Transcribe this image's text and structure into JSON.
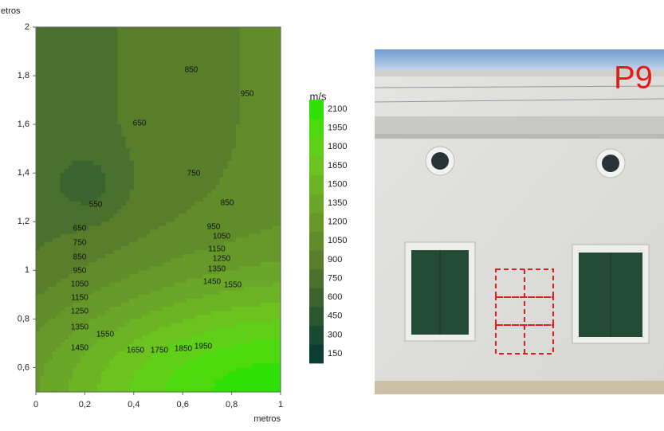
{
  "chart_data": {
    "type": "contour",
    "xlabel": "metros",
    "ylabel": "ıetros",
    "xlim": [
      0,
      1
    ],
    "ylim": [
      0.5,
      2
    ],
    "xticks": [
      0,
      {
        "value": 0.2,
        "label": "0,2"
      },
      {
        "value": 0.4,
        "label": "0,4"
      },
      {
        "value": 0.6,
        "label": "0,6"
      },
      {
        "value": 0.8,
        "label": "0,8"
      },
      1
    ],
    "yticks": [
      {
        "value": 0.6,
        "label": "0,6"
      },
      {
        "value": 0.8,
        "label": "0,8"
      },
      1,
      {
        "value": 1.2,
        "label": "1,2"
      },
      {
        "value": 1.4,
        "label": "1,4"
      },
      {
        "value": 1.6,
        "label": "1,6"
      },
      {
        "value": 1.8,
        "label": "1,8"
      },
      2
    ],
    "contour_labels": [
      550,
      650,
      650,
      750,
      850,
      950,
      1050,
      1150,
      1250,
      1350,
      1450,
      1550,
      1650,
      1750,
      1850,
      1950,
      750,
      850,
      950,
      850,
      950,
      1050,
      1150,
      1250,
      1350,
      1450,
      1550
    ],
    "colorbar": {
      "title": "m/s",
      "levels": [
        150,
        300,
        450,
        600,
        750,
        900,
        1050,
        1200,
        1350,
        1500,
        1650,
        1800,
        1950,
        2100
      ],
      "colors": [
        "#0b3d33",
        "#1a4a33",
        "#2a5630",
        "#3a6330",
        "#4a702e",
        "#587e2c",
        "#618c2a",
        "#67992a",
        "#6aa628",
        "#6bb424",
        "#6cc21f",
        "#60cf18",
        "#4cd90e",
        "#2ee005"
      ]
    }
  },
  "photo": {
    "label": "P9"
  }
}
